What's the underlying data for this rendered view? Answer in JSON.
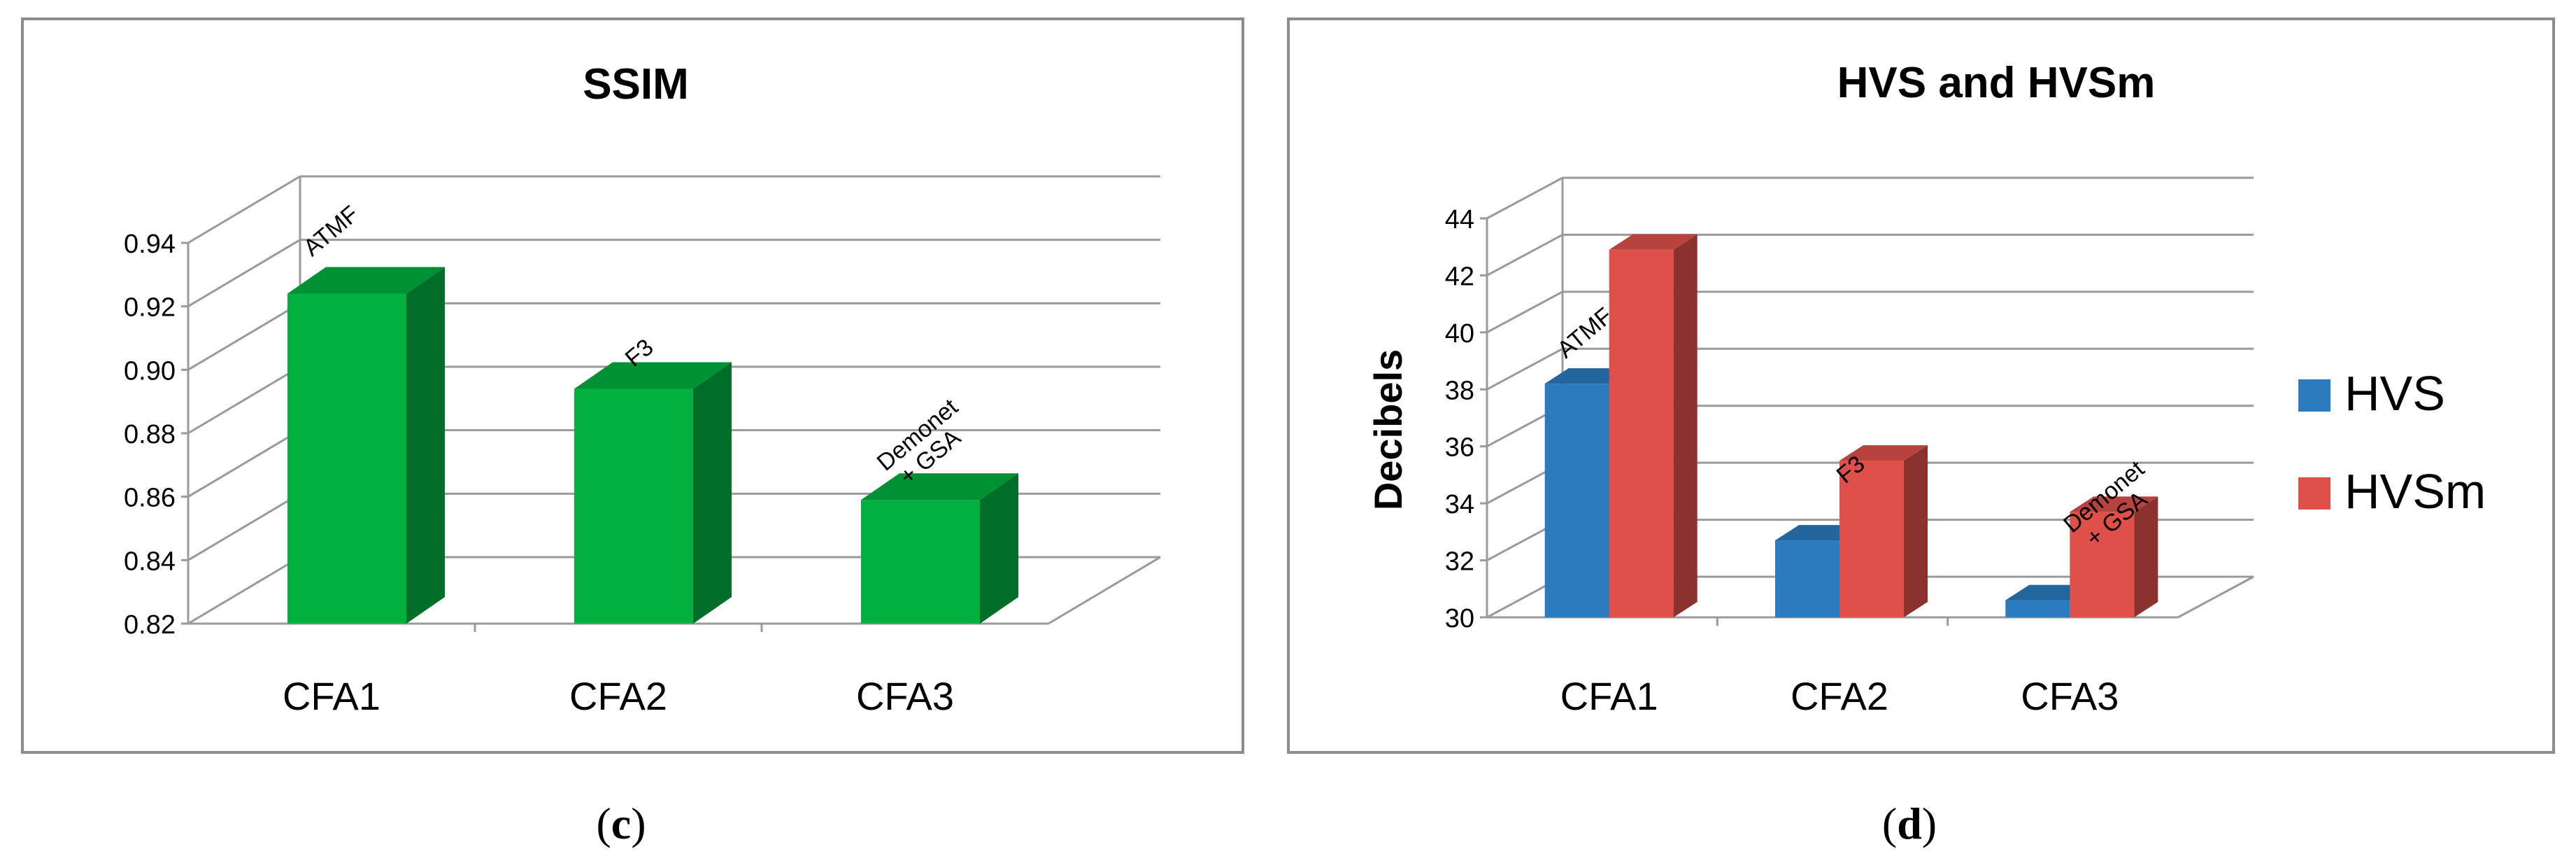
{
  "chart_data": [
    {
      "type": "bar",
      "title": "SSIM",
      "categories": [
        "CFA1",
        "CFA2",
        "CFA3"
      ],
      "series": [
        {
          "values": [
            0.924,
            0.894,
            0.859
          ],
          "color": "#00b140"
        }
      ],
      "bar_labels": [
        [
          "ATMF"
        ],
        [
          "F3"
        ],
        [
          "Demonet",
          "+ GSA"
        ]
      ],
      "ylim": [
        0.82,
        0.94
      ],
      "yticks": [
        "0.82",
        "0.84",
        "0.86",
        "0.88",
        "0.90",
        "0.92",
        "0.94"
      ],
      "xlabel": "",
      "ylabel": "",
      "grid": true,
      "caption": "c"
    },
    {
      "type": "bar",
      "title": "HVS and HVSm",
      "categories": [
        "CFA1",
        "CFA2",
        "CFA3"
      ],
      "series": [
        {
          "name": "HVS",
          "values": [
            38.2,
            32.7,
            30.6
          ],
          "color": "#2b7bbf"
        },
        {
          "name": "HVSm",
          "values": [
            42.9,
            35.5,
            33.7
          ],
          "color": "#e0504a"
        }
      ],
      "bar_labels": [
        [
          "ATMF"
        ],
        [
          "F3"
        ],
        [
          "Demonet",
          "+ GSA"
        ]
      ],
      "ylim": [
        30,
        44
      ],
      "yticks": [
        "30",
        "32",
        "34",
        "36",
        "38",
        "40",
        "42",
        "44"
      ],
      "xlabel": "",
      "ylabel": "Decibels",
      "grid": true,
      "legend": "right",
      "caption": "d"
    }
  ]
}
